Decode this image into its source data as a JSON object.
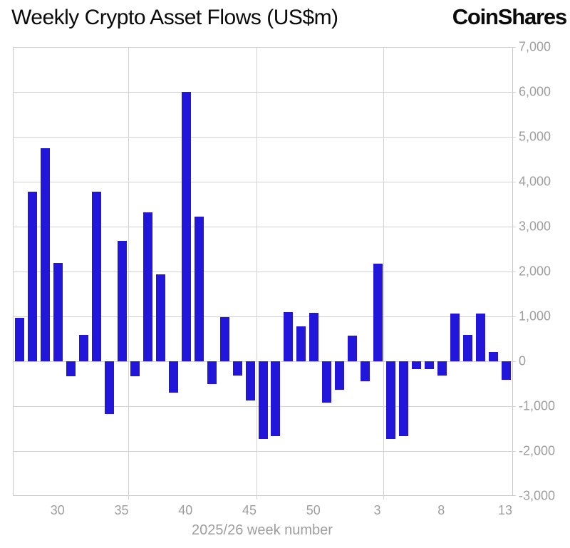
{
  "header": {
    "title": "Weekly Crypto Asset Flows (US$m)",
    "brand": "CoinShares"
  },
  "chart_data": {
    "type": "bar",
    "title": "Weekly Crypto Asset Flows (US$m)",
    "xlabel": "2025/26 week number",
    "ylabel": "",
    "ylim": [
      -3000,
      7000
    ],
    "grid": true,
    "legend": "none",
    "bar_color": "#2316DB",
    "categories": [
      "27",
      "28",
      "29",
      "30",
      "31",
      "32",
      "33",
      "34",
      "35",
      "36",
      "37",
      "38",
      "39",
      "40",
      "41",
      "42",
      "43",
      "44",
      "45",
      "46",
      "47",
      "48",
      "49",
      "50",
      "51",
      "52",
      "1",
      "2",
      "3",
      "4",
      "5",
      "6",
      "7",
      "8",
      "9",
      "10",
      "11",
      "12",
      "13"
    ],
    "values": [
      970,
      3780,
      4750,
      2190,
      -330,
      580,
      3780,
      -1180,
      2680,
      -340,
      3320,
      1930,
      -700,
      6000,
      3230,
      -500,
      980,
      -310,
      -880,
      -1730,
      -1660,
      1100,
      770,
      1080,
      -920,
      -630,
      570,
      -450,
      2180,
      -1730,
      -1670,
      -180,
      -180,
      -320,
      1070,
      590,
      1060,
      200,
      -410
    ],
    "y_tick_values": [
      7000,
      6000,
      5000,
      4000,
      3000,
      2000,
      1000,
      0,
      -1000,
      -2000,
      -3000
    ],
    "y_tick_labels": [
      "7,000",
      "6,000",
      "5,000",
      "4,000",
      "3,000",
      "2,000",
      "1,000",
      "0",
      "-1,000",
      "-2,000",
      "-3,000"
    ],
    "x_tick_labels": [
      "30",
      "35",
      "40",
      "45",
      "50",
      "3",
      "8",
      "13"
    ],
    "x_tick_indices": [
      3,
      8,
      13,
      18,
      23,
      28,
      33,
      38
    ]
  },
  "colors": {
    "bar": "#2316DB",
    "grid": "#d2d2d2",
    "axis_border": "#c9c9c9",
    "label_gray": "#9e9e9e",
    "title_black": "#0b0b0b",
    "background": "#ffffff"
  }
}
